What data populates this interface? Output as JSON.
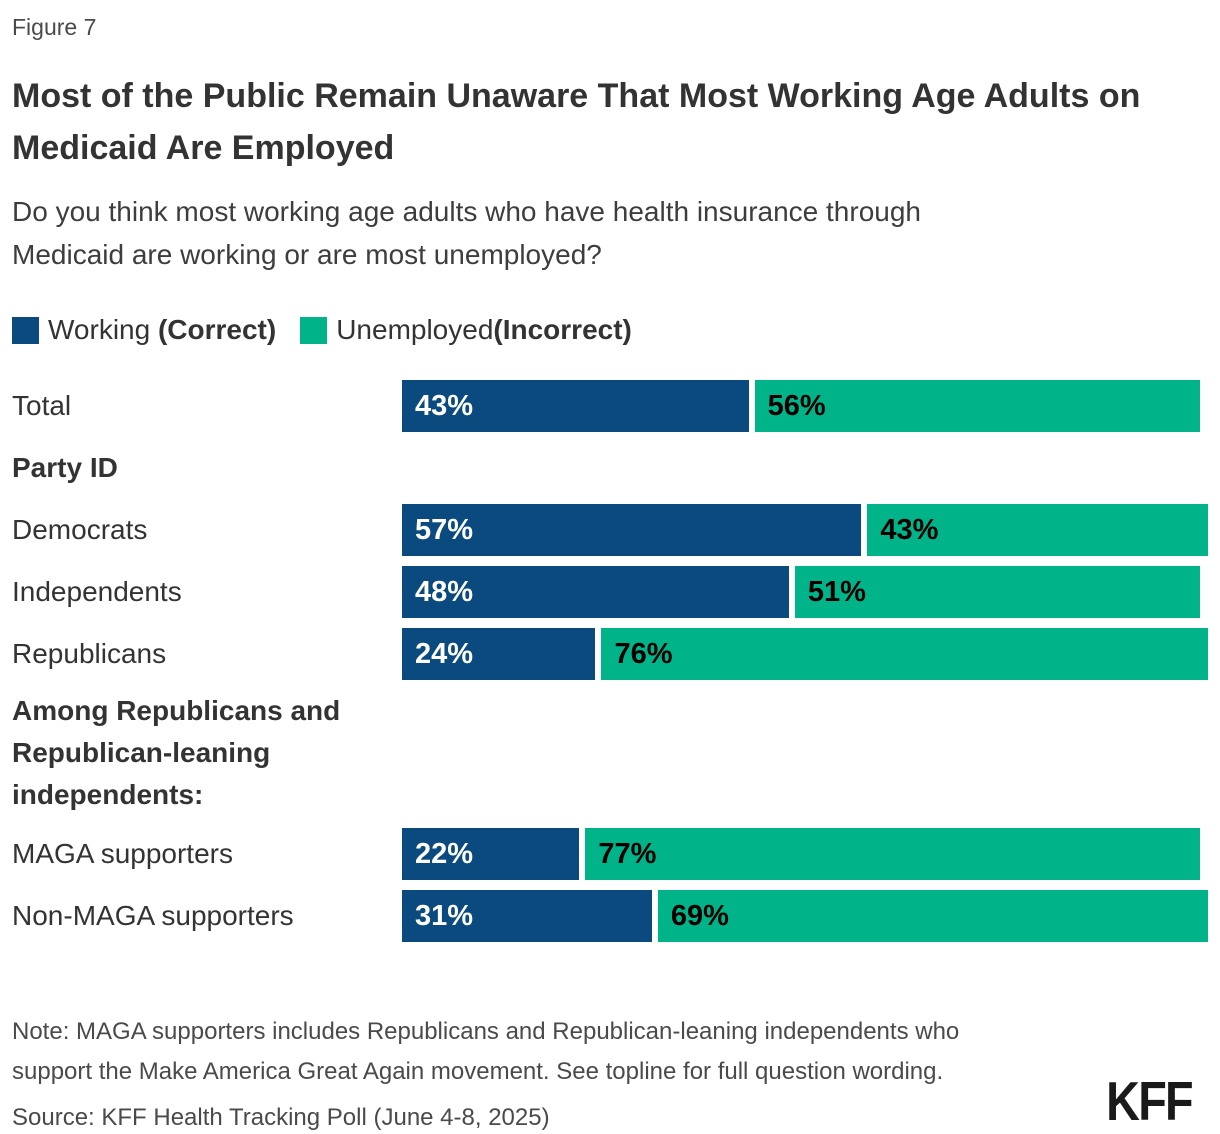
{
  "figure_label": "Figure 7",
  "title": "Most of the Public Remain Unaware That Most Working Age Adults on Medicaid Are Employed",
  "question": "Do you think most working age adults who have health insurance through Medicaid are working or are most unemployed?",
  "colors": {
    "working": "#0B4A7F",
    "unemployed": "#00B388",
    "working_value_text": "#FFFFFF",
    "unemployed_value_text": "#000000"
  },
  "legend": {
    "items": [
      {
        "label": "Working ",
        "qualifier": "(Correct)"
      },
      {
        "label": "Unemployed",
        "qualifier": "(Incorrect)"
      }
    ]
  },
  "rows": [
    {
      "type": "bar",
      "label": "Total",
      "working": 43,
      "unemployed": 56
    },
    {
      "type": "heading",
      "label": "Party ID"
    },
    {
      "type": "bar",
      "label": "Democrats",
      "working": 57,
      "unemployed": 43
    },
    {
      "type": "bar",
      "label": "Independents",
      "working": 48,
      "unemployed": 51
    },
    {
      "type": "bar",
      "label": "Republicans",
      "working": 24,
      "unemployed": 76
    },
    {
      "type": "heading",
      "label": "Among Republicans and Republican-leaning independents:",
      "multiline": true
    },
    {
      "type": "bar",
      "label": "MAGA supporters",
      "working": 22,
      "unemployed": 77
    },
    {
      "type": "bar",
      "label": "Non-MAGA supporters",
      "working": 31,
      "unemployed": 69
    }
  ],
  "chart_data": {
    "type": "bar",
    "orientation": "horizontal",
    "stacked": true,
    "unit": "%",
    "xlim": [
      0,
      100
    ],
    "grid": false,
    "data_labels": true,
    "legend_position": "top",
    "title": "Most of the Public Remain Unaware That Most Working Age Adults on Medicaid Are Employed",
    "subtitle": "Do you think most working age adults who have health insurance through Medicaid are working or are most unemployed?",
    "categories": [
      "Total",
      "Democrats",
      "Independents",
      "Republicans",
      "MAGA supporters",
      "Non-MAGA supporters"
    ],
    "group_headings": [
      "Party ID",
      "Among Republicans and Republican-leaning independents:"
    ],
    "series": [
      {
        "name": "Working (Correct)",
        "color": "#0B4A7F",
        "values": [
          43,
          57,
          48,
          24,
          22,
          31
        ]
      },
      {
        "name": "Unemployed (Incorrect)",
        "color": "#00B388",
        "values": [
          56,
          43,
          51,
          76,
          77,
          69
        ]
      }
    ]
  },
  "note": "Note: MAGA supporters includes Republicans and Republican-leaning independents who support the Make America Great Again movement. See topline for full question wording.",
  "source": "Source: KFF Health Tracking Poll (June 4-8, 2025)",
  "logo_text": "KFF"
}
